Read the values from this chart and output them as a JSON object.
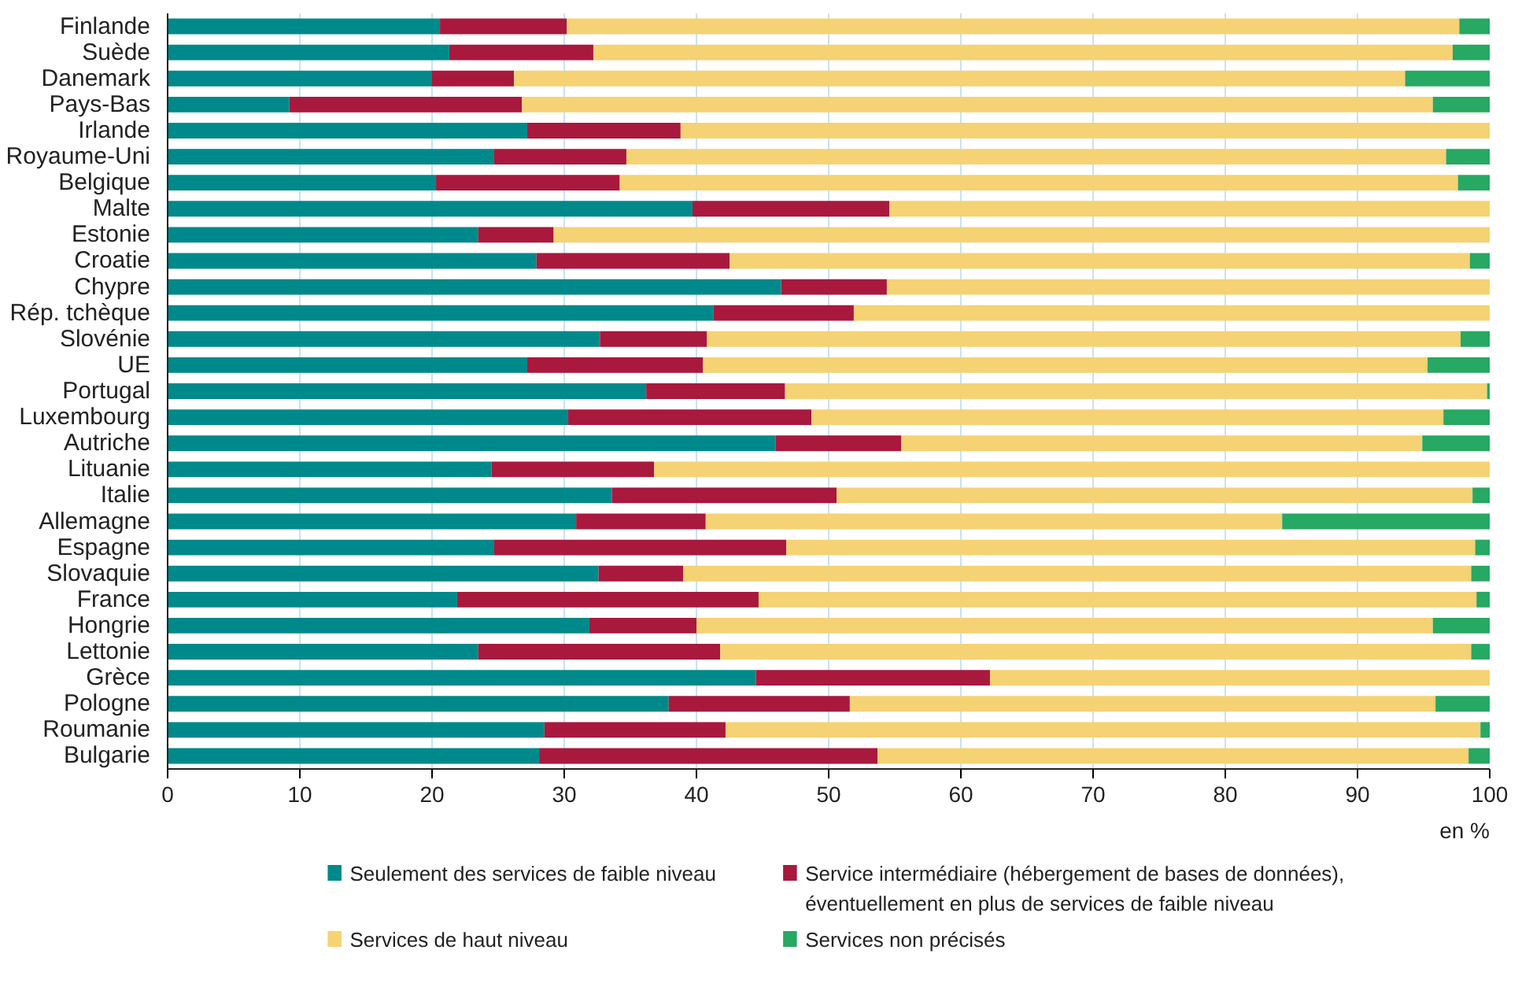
{
  "chart_data": {
    "type": "bar",
    "orientation": "horizontal",
    "stacked": true,
    "xlabel": "en %",
    "categories": [
      "Finlande",
      "Suède",
      "Danemark",
      "Pays-Bas",
      "Irlande",
      "Royaume-Uni",
      "Belgique",
      "Malte",
      "Estonie",
      "Croatie",
      "Chypre",
      "Rép. tchèque",
      "Slovénie",
      "UE",
      "Portugal",
      "Luxembourg",
      "Autriche",
      "Lituanie",
      "Italie",
      "Allemagne",
      "Espagne",
      "Slovaquie",
      "France",
      "Hongrie",
      "Lettonie",
      "Grèce",
      "Pologne",
      "Roumanie",
      "Bulgarie"
    ],
    "series": [
      {
        "name": "Seulement des services de faible niveau",
        "color": "#00898a",
        "values": [
          20.6,
          21.3,
          20.0,
          9.2,
          27.2,
          24.7,
          20.3,
          39.7,
          23.5,
          27.9,
          46.4,
          41.3,
          32.7,
          27.2,
          36.2,
          30.3,
          46.0,
          24.5,
          33.6,
          30.9,
          24.7,
          32.6,
          21.9,
          31.9,
          23.5,
          44.5,
          37.9,
          28.5,
          28.1
        ]
      },
      {
        "name": "Service intermédiaire (hébergement de bases de données), éventuellement en plus de services de faible niveau",
        "color": "#a8193d",
        "values": [
          9.6,
          10.9,
          6.2,
          17.6,
          11.6,
          10.0,
          13.9,
          14.9,
          5.7,
          14.6,
          8.0,
          10.6,
          8.1,
          13.3,
          10.5,
          18.4,
          9.5,
          12.3,
          17.0,
          9.8,
          22.1,
          6.4,
          22.8,
          8.1,
          18.3,
          17.7,
          13.7,
          13.7,
          25.6
        ]
      },
      {
        "name": "Services de haut niveau",
        "color": "#f5d273",
        "values": [
          67.5,
          65.0,
          67.4,
          68.9,
          61.2,
          62.0,
          63.4,
          45.4,
          70.8,
          56.0,
          45.6,
          48.1,
          57.0,
          54.8,
          53.1,
          47.8,
          39.4,
          63.2,
          48.1,
          43.6,
          52.1,
          59.6,
          54.3,
          55.7,
          56.8,
          37.8,
          44.3,
          57.1,
          44.7
        ]
      },
      {
        "name": "Services non précisés",
        "color": "#27a863",
        "values": [
          2.3,
          2.8,
          6.4,
          4.3,
          0,
          3.3,
          2.4,
          0,
          0,
          1.5,
          0,
          0,
          2.2,
          4.7,
          0.2,
          3.5,
          5.1,
          0,
          1.3,
          15.7,
          1.1,
          1.4,
          1.0,
          4.3,
          1.4,
          0,
          4.1,
          0.7,
          1.6
        ]
      }
    ],
    "xlim": [
      0,
      100
    ],
    "xticks": [
      0,
      10,
      20,
      30,
      40,
      50,
      60,
      70,
      80,
      90,
      100
    ],
    "grid": "x",
    "legend": "bottom"
  }
}
